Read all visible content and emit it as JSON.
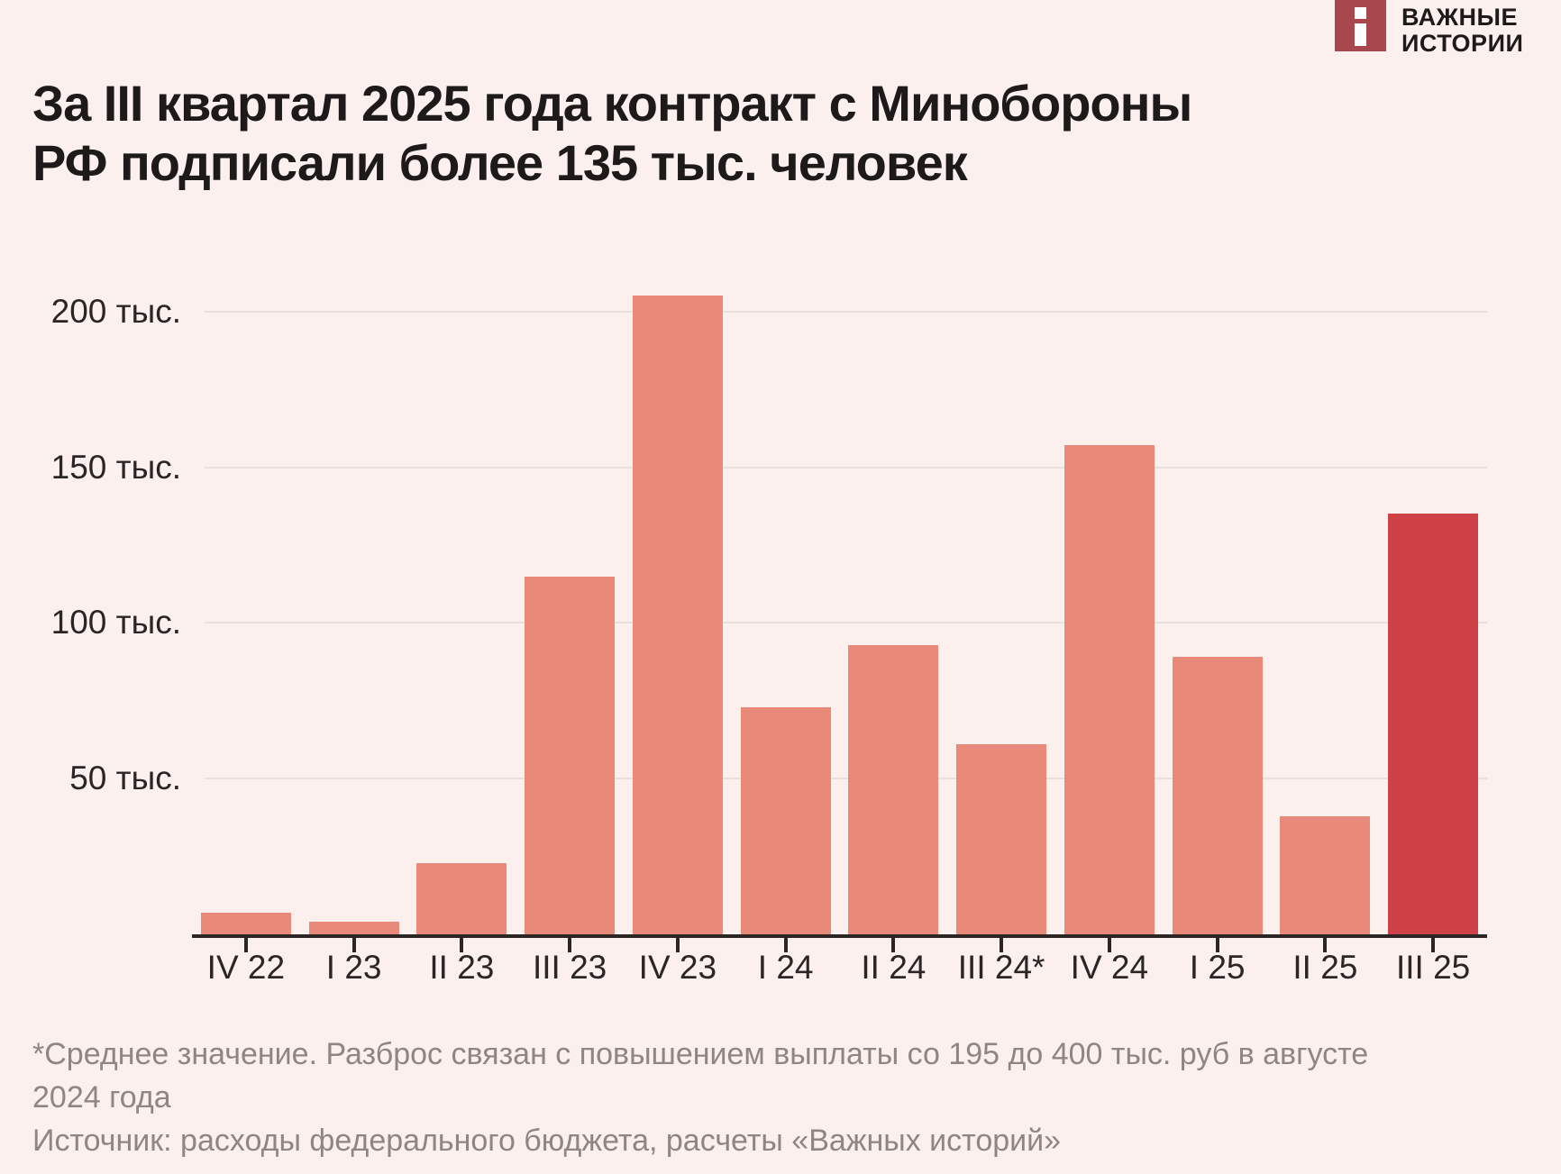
{
  "logo": {
    "brand_line1": "ВАЖНЫЕ",
    "brand_line2": "ИСТОРИИ"
  },
  "title": {
    "line1": "За III квартал 2025 года контракт с Минобороны",
    "line2": "РФ подписали более 135 тыс. человек"
  },
  "chart_data": {
    "type": "bar",
    "title": "За III квартал 2025 года контракт с Минобороны РФ подписали более 135 тыс. человек",
    "unit": "тыс. человек",
    "categories": [
      "IV 22",
      "I 23",
      "II 23",
      "III 23",
      "IV 23",
      "I 24",
      "II 24",
      "III 24*",
      "IV 24",
      "I 25",
      "II 25",
      "III 25"
    ],
    "values": [
      7,
      4,
      23,
      115,
      205,
      73,
      93,
      61,
      157,
      89,
      38,
      135
    ],
    "yticks": [
      50,
      100,
      150,
      200
    ],
    "ytick_labels": [
      "50 тыс.",
      "100 тыс.",
      "150 тыс.",
      "200 тыс."
    ],
    "ylim": [
      0,
      206
    ],
    "grid": true,
    "legend": "none",
    "highlight_index": 11,
    "bar_color": "#E8897A",
    "highlight_color": "#CE4247",
    "background_color": "#FBF0EE",
    "xlabel": "",
    "ylabel": ""
  },
  "footnote": {
    "note_line1": "*Среднее значение. Разброс связан с повышением выплаты со 195 до 400 тыс. руб в августе",
    "note_line2": "2024 года",
    "source_line": "Источник: расходы федерального бюджета, расчеты «Важных историй»"
  }
}
